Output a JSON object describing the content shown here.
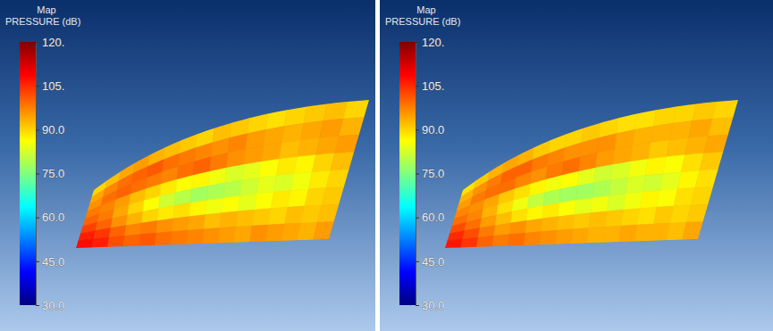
{
  "chart_data": [
    {
      "type": "heatmap",
      "title": "Map",
      "subtitle": "PRESSURE (dB)",
      "colorbar_range": [
        30,
        120
      ],
      "colorbar_ticks": [
        {
          "value": 30,
          "label": "30.0"
        },
        {
          "value": 45,
          "label": "45.0"
        },
        {
          "value": 60,
          "label": "60.0"
        },
        {
          "value": 75,
          "label": "75.0"
        },
        {
          "value": 90,
          "label": "90.0"
        },
        {
          "value": 105,
          "label": "105."
        },
        {
          "value": 120,
          "label": "120."
        }
      ],
      "cells": [
        [
          90,
          92,
          94,
          95,
          93,
          92,
          91,
          90,
          92,
          91,
          90,
          89,
          90,
          91,
          92,
          90
        ],
        [
          94,
          97,
          99,
          100,
          101,
          99,
          98,
          97,
          96,
          97,
          95,
          94,
          93,
          94,
          95,
          93
        ],
        [
          96,
          99,
          100,
          99,
          98,
          97,
          99,
          100,
          98,
          96,
          95,
          94,
          92,
          93,
          94,
          95
        ],
        [
          98,
          97,
          95,
          92,
          90,
          88,
          86,
          87,
          85,
          83,
          84,
          86,
          88,
          87,
          90,
          92
        ],
        [
          100,
          98,
          94,
          90,
          86,
          82,
          80,
          78,
          79,
          80,
          82,
          84,
          83,
          85,
          88,
          90
        ],
        [
          103,
          100,
          96,
          93,
          90,
          88,
          89,
          87,
          85,
          86,
          84,
          86,
          88,
          87,
          90,
          91
        ],
        [
          106,
          104,
          100,
          97,
          98,
          96,
          95,
          94,
          92,
          93,
          92,
          91,
          90,
          92,
          91,
          92
        ],
        [
          108,
          106,
          102,
          100,
          101,
          99,
          98,
          97,
          96,
          95,
          94,
          96,
          95,
          94,
          93,
          95
        ]
      ]
    },
    {
      "type": "heatmap",
      "title": "Map",
      "subtitle": "PRESSURE (dB)",
      "colorbar_range": [
        30,
        120
      ],
      "colorbar_ticks": [
        {
          "value": 30,
          "label": "30.0"
        },
        {
          "value": 45,
          "label": "45.0"
        },
        {
          "value": 60,
          "label": "60.0"
        },
        {
          "value": 75,
          "label": "75.0"
        },
        {
          "value": 90,
          "label": "90.0"
        },
        {
          "value": 105,
          "label": "105."
        },
        {
          "value": 120,
          "label": "120."
        }
      ],
      "cells": [
        [
          89,
          91,
          93,
          94,
          93,
          91,
          90,
          90,
          91,
          90,
          89,
          89,
          90,
          90,
          91,
          90
        ],
        [
          93,
          96,
          98,
          100,
          100,
          98,
          97,
          96,
          96,
          96,
          94,
          93,
          93,
          93,
          94,
          92
        ],
        [
          95,
          98,
          99,
          99,
          97,
          96,
          98,
          99,
          97,
          95,
          94,
          93,
          91,
          92,
          93,
          94
        ],
        [
          97,
          96,
          94,
          91,
          89,
          87,
          85,
          86,
          84,
          82,
          83,
          85,
          87,
          86,
          89,
          91
        ],
        [
          99,
          97,
          93,
          89,
          85,
          81,
          79,
          78,
          78,
          79,
          81,
          83,
          82,
          84,
          87,
          89
        ],
        [
          102,
          99,
          95,
          92,
          89,
          87,
          88,
          86,
          84,
          85,
          83,
          85,
          87,
          86,
          89,
          90
        ],
        [
          105,
          102,
          98,
          95,
          96,
          94,
          93,
          92,
          91,
          92,
          91,
          90,
          89,
          91,
          90,
          91
        ],
        [
          107,
          104,
          100,
          98,
          99,
          97,
          96,
          95,
          94,
          93,
          93,
          94,
          93,
          93,
          92,
          94
        ]
      ]
    }
  ]
}
